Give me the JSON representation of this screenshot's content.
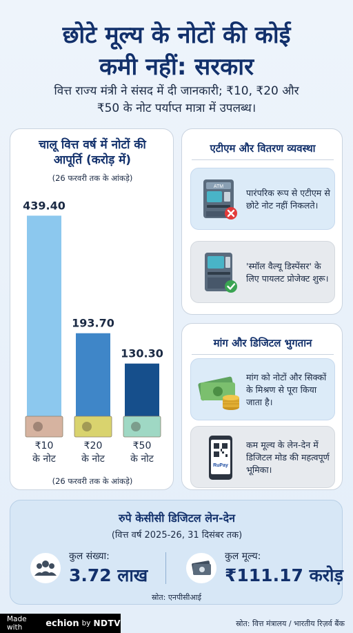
{
  "header": {
    "title_line1": "छोटे मूल्य के नोटों की कोई",
    "title_line2": "कमी नहीं: सरकार",
    "subtitle_line1": "वित्त राज्य मंत्री ने संसद में दी जानकारी; ₹10, ₹20 और",
    "subtitle_line2": "₹50 के नोट पर्याप्त मात्रा में उपलब्ध।"
  },
  "chart_data": {
    "type": "bar",
    "title": "चालू वित्त वर्ष में नोटों की आपूर्ति (करोड़ में)",
    "title_line1": "चालू वित्त वर्ष में नोटों की",
    "title_line2": "आपूर्ति (करोड़ में)",
    "note": "(26 फरवरी तक के आंकड़े)",
    "categories": [
      "₹10 के नोट",
      "₹20 के नोट",
      "₹50 के नोट"
    ],
    "category_lines": [
      [
        "₹10",
        "के नोट"
      ],
      [
        "₹20",
        "के नोट"
      ],
      [
        "₹50",
        "के नोट"
      ]
    ],
    "values": [
      439.4,
      193.7,
      130.3
    ],
    "value_labels": [
      "439.40",
      "193.70",
      "130.30"
    ],
    "colors": [
      "#8cc8ee",
      "#3f86c8",
      "#164f8c"
    ],
    "note_colors": [
      "#d6b3a0",
      "#d9d36e",
      "#9fd8c4"
    ],
    "ylim": [
      0,
      440
    ]
  },
  "atm_panel": {
    "title": "एटीएम और वितरण व्यवस्था",
    "items": [
      {
        "text": "पारंपरिक रूप से एटीएम से छोटे नोट नहीं निकलते।",
        "icon": "atm-cross-icon",
        "atm_label": "ATM"
      },
      {
        "text": "'स्मॉल वैल्यू डिस्पेंसर' के लिए पायलट प्रोजेक्ट शुरू।",
        "icon": "dispenser-check-icon"
      }
    ]
  },
  "demand_panel": {
    "title": "मांग और डिजिटल भुगतान",
    "items": [
      {
        "text": "मांग को नोटों और सिक्कों के मिश्रण से पूरा किया जाता है।",
        "icon": "cash-coins-icon"
      },
      {
        "text": "कम मूल्य के लेन-देन में डिजिटल मोड की महत्वपूर्ण भूमिका।",
        "icon": "phone-qr-icon",
        "phone_label": "RuPay"
      }
    ]
  },
  "rupay": {
    "title": "रुपे केसीसी डिजिटल लेन-देन",
    "subtitle": "(वित्त वर्ष 2025-26, 31 दिसंबर तक)",
    "count_label": "कुल संख्या:",
    "count_value": "3.72 लाख",
    "value_label": "कुल मूल्य:",
    "value_value": "₹111.17 करोड़",
    "source": "स्रोत: एनपीसीआई"
  },
  "footer": {
    "made_with": "Made with",
    "brand": "echion",
    "by": "by",
    "ndtv": "NDTV",
    "source": "स्रोत: वित्त मंत्रालय / भारतीय रिज़र्व बैंक"
  }
}
